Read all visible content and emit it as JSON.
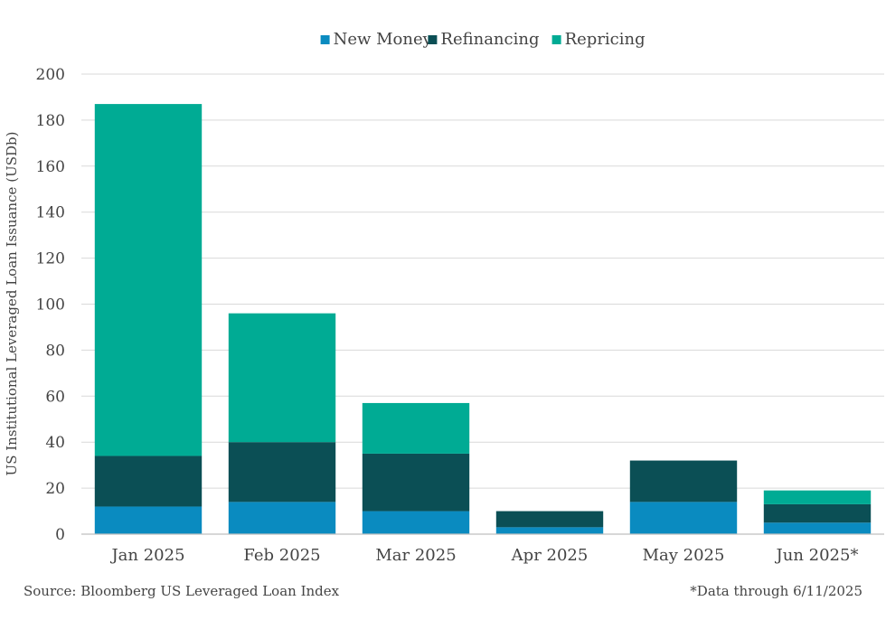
{
  "chart_data": {
    "type": "bar",
    "stacked": true,
    "categories": [
      "Jan 2025",
      "Feb 2025",
      "Mar 2025",
      "Apr 2025",
      "May 2025",
      "Jun 2025*"
    ],
    "series": [
      {
        "name": "New Money",
        "color": "#0a8bc0",
        "values": [
          12,
          14,
          10,
          3,
          14,
          5
        ]
      },
      {
        "name": "Refinancing",
        "color": "#0b4f55",
        "values": [
          22,
          26,
          25,
          7,
          18,
          8
        ]
      },
      {
        "name": "Repricing",
        "color": "#00ab94",
        "values": [
          153,
          56,
          22,
          0,
          0,
          6
        ]
      }
    ],
    "ylabel": "US Institutional Leveraged Loan Issuance (USDb)",
    "xlabel": "",
    "ylim": [
      0,
      200
    ],
    "yticks": [
      0,
      20,
      40,
      60,
      80,
      100,
      120,
      140,
      160,
      180,
      200
    ],
    "grid": true,
    "legend_position": "top-center"
  },
  "notes": {
    "source": "Source: Bloomberg US Leveraged Loan Index",
    "data_through": "*Data through 6/11/2025"
  }
}
